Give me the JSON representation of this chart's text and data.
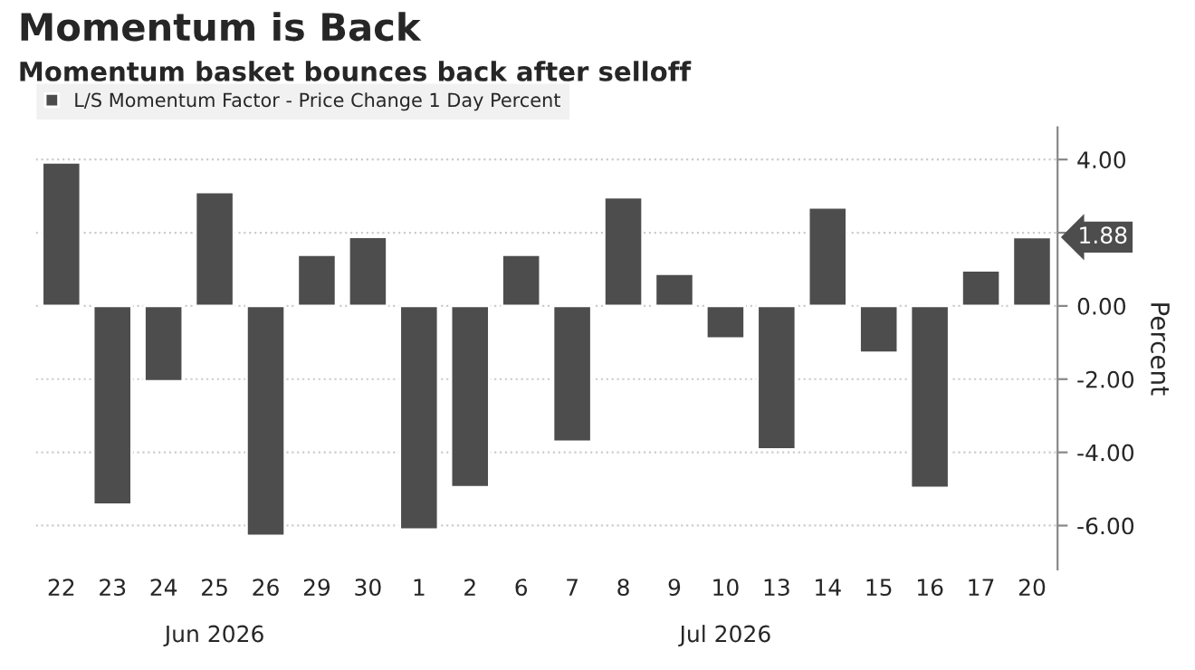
{
  "chart_data": {
    "type": "bar",
    "title": "Momentum is Back",
    "subtitle": "Momentum basket bounces back after selloff",
    "categories": [
      "22",
      "23",
      "24",
      "25",
      "26",
      "29",
      "30",
      "1",
      "2",
      "6",
      "7",
      "8",
      "9",
      "10",
      "13",
      "14",
      "15",
      "16",
      "17",
      "20"
    ],
    "series": [
      {
        "name": "L/S Momentum Factor - Price Change 1 Day Percent",
        "color": "#4d4d4d",
        "values": [
          3.92,
          -5.43,
          -2.06,
          3.11,
          -6.28,
          1.4,
          1.89,
          -6.11,
          -4.95,
          1.4,
          -3.71,
          2.97,
          0.88,
          -0.89,
          -3.92,
          2.69,
          -1.28,
          -4.97,
          0.97,
          1.88
        ]
      }
    ],
    "ylabel": "Percent",
    "ylim": [
      -7.2,
      4.88
    ],
    "yticks": [
      {
        "value": -6,
        "label": "-6.00"
      },
      {
        "value": -4,
        "label": "-4.00"
      },
      {
        "value": -2,
        "label": "-2.00"
      },
      {
        "value": 0,
        "label": "0.00"
      },
      {
        "value": 2,
        "label": null
      },
      {
        "value": 4,
        "label": "4.00"
      }
    ],
    "annotations": [
      "Jun 2026",
      "Jul 2026",
      {
        "text": "1.88",
        "x": "20",
        "y": 1.88
      }
    ],
    "grid": "y",
    "legend": "top left"
  }
}
